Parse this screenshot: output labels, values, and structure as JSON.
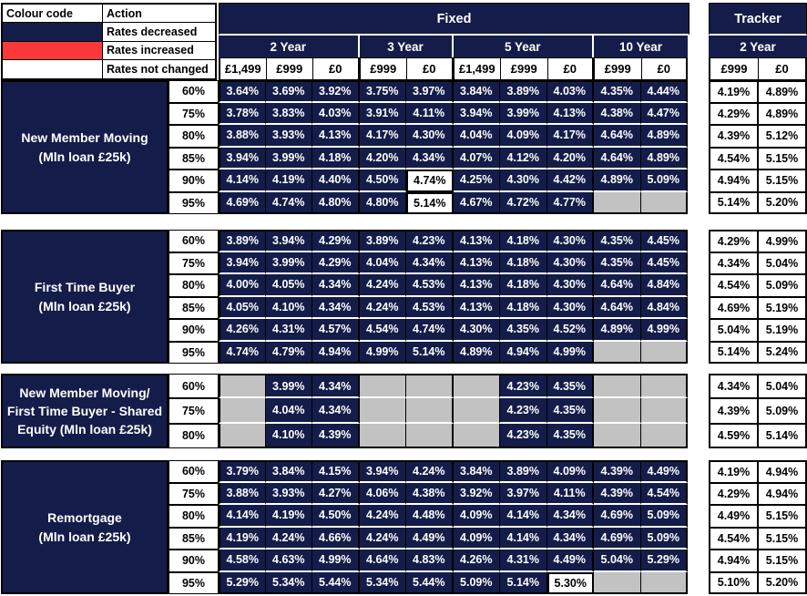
{
  "colors": {
    "navy": "#141d49",
    "red": "#fa3a3a",
    "empty_gray": "#c2c2c2"
  },
  "legend": {
    "col1_header": "Colour code",
    "col2_header": "Action",
    "rows": [
      {
        "color": "navy",
        "action": "Rates decreased"
      },
      {
        "color": "red",
        "action": "Rates increased"
      },
      {
        "color": "white",
        "action": "Rates not changed"
      }
    ]
  },
  "header": {
    "fixed_label": "Fixed",
    "tracker_label": "Tracker",
    "fixed_groups": [
      {
        "label": "2 Year",
        "fees": [
          "£1,499",
          "£999",
          "£0"
        ]
      },
      {
        "label": "3 Year",
        "fees": [
          "£999",
          "£0"
        ]
      },
      {
        "label": "5 Year",
        "fees": [
          "£1,499",
          "£999",
          "£0"
        ]
      },
      {
        "label": "10 Year",
        "fees": [
          "£999",
          "£0"
        ]
      }
    ],
    "tracker_group": {
      "label": "2 Year",
      "fees": [
        "£999",
        "£0"
      ]
    }
  },
  "sections": [
    {
      "id": "new-member-moving",
      "label_lines": [
        "New Member Moving",
        "(Mln loan £25k)"
      ],
      "rows": [
        {
          "ltv": "60%",
          "fixed": [
            "3.64%",
            "3.69%",
            "3.92%",
            "3.75%",
            "3.97%",
            "3.84%",
            "3.89%",
            "4.03%",
            "4.35%",
            "4.44%"
          ],
          "tracker": [
            "4.19%",
            "4.89%"
          ],
          "unchanged": []
        },
        {
          "ltv": "75%",
          "fixed": [
            "3.78%",
            "3.83%",
            "4.03%",
            "3.91%",
            "4.11%",
            "3.94%",
            "3.99%",
            "4.13%",
            "4.38%",
            "4.47%"
          ],
          "tracker": [
            "4.29%",
            "4.89%"
          ],
          "unchanged": []
        },
        {
          "ltv": "80%",
          "fixed": [
            "3.88%",
            "3.93%",
            "4.13%",
            "4.17%",
            "4.30%",
            "4.04%",
            "4.09%",
            "4.17%",
            "4.64%",
            "4.89%"
          ],
          "tracker": [
            "4.39%",
            "5.12%"
          ],
          "unchanged": []
        },
        {
          "ltv": "85%",
          "fixed": [
            "3.94%",
            "3.99%",
            "4.18%",
            "4.20%",
            "4.34%",
            "4.07%",
            "4.12%",
            "4.20%",
            "4.64%",
            "4.89%"
          ],
          "tracker": [
            "4.54%",
            "5.15%"
          ],
          "unchanged": []
        },
        {
          "ltv": "90%",
          "fixed": [
            "4.14%",
            "4.19%",
            "4.40%",
            "4.50%",
            "4.74%",
            "4.25%",
            "4.30%",
            "4.42%",
            "4.89%",
            "5.09%"
          ],
          "tracker": [
            "4.94%",
            "5.15%"
          ],
          "unchanged": [
            4
          ]
        },
        {
          "ltv": "95%",
          "fixed": [
            "4.69%",
            "4.74%",
            "4.80%",
            "4.80%",
            "5.14%",
            "4.67%",
            "4.72%",
            "4.77%",
            "",
            ""
          ],
          "tracker": [
            "5.14%",
            "5.20%"
          ],
          "unchanged": [
            4
          ]
        }
      ]
    },
    {
      "id": "first-time-buyer",
      "label_lines": [
        "First Time Buyer",
        "(Mln loan £25k)"
      ],
      "rows": [
        {
          "ltv": "60%",
          "fixed": [
            "3.89%",
            "3.94%",
            "4.29%",
            "3.89%",
            "4.23%",
            "4.13%",
            "4.18%",
            "4.30%",
            "4.35%",
            "4.45%"
          ],
          "tracker": [
            "4.29%",
            "4.99%"
          ],
          "unchanged": []
        },
        {
          "ltv": "75%",
          "fixed": [
            "3.94%",
            "3.99%",
            "4.29%",
            "4.04%",
            "4.34%",
            "4.13%",
            "4.18%",
            "4.30%",
            "4.35%",
            "4.45%"
          ],
          "tracker": [
            "4.34%",
            "5.04%"
          ],
          "unchanged": []
        },
        {
          "ltv": "80%",
          "fixed": [
            "4.00%",
            "4.05%",
            "4.34%",
            "4.24%",
            "4.53%",
            "4.13%",
            "4.18%",
            "4.30%",
            "4.64%",
            "4.84%"
          ],
          "tracker": [
            "4.54%",
            "5.09%"
          ],
          "unchanged": []
        },
        {
          "ltv": "85%",
          "fixed": [
            "4.05%",
            "4.10%",
            "4.34%",
            "4.24%",
            "4.53%",
            "4.13%",
            "4.18%",
            "4.30%",
            "4.64%",
            "4.84%"
          ],
          "tracker": [
            "4.69%",
            "5.19%"
          ],
          "unchanged": []
        },
        {
          "ltv": "90%",
          "fixed": [
            "4.26%",
            "4.31%",
            "4.57%",
            "4.54%",
            "4.74%",
            "4.30%",
            "4.35%",
            "4.52%",
            "4.89%",
            "4.99%"
          ],
          "tracker": [
            "5.04%",
            "5.19%"
          ],
          "unchanged": []
        },
        {
          "ltv": "95%",
          "fixed": [
            "4.74%",
            "4.79%",
            "4.94%",
            "4.99%",
            "5.14%",
            "4.89%",
            "4.94%",
            "4.99%",
            "",
            ""
          ],
          "tracker": [
            "5.14%",
            "5.24%"
          ],
          "unchanged": []
        }
      ]
    },
    {
      "id": "shared-equity",
      "label_lines": [
        "New Member Moving/",
        "First Time Buyer - Shared",
        "Equity (Mln loan £25k)"
      ],
      "rows": [
        {
          "ltv": "60%",
          "fixed": [
            "",
            "3.99%",
            "4.34%",
            "",
            "",
            "",
            "4.23%",
            "4.35%",
            "",
            ""
          ],
          "tracker": [
            "4.34%",
            "5.04%"
          ],
          "unchanged": []
        },
        {
          "ltv": "75%",
          "fixed": [
            "",
            "4.04%",
            "4.34%",
            "",
            "",
            "",
            "4.23%",
            "4.35%",
            "",
            ""
          ],
          "tracker": [
            "4.39%",
            "5.09%"
          ],
          "unchanged": []
        },
        {
          "ltv": "80%",
          "fixed": [
            "",
            "4.10%",
            "4.39%",
            "",
            "",
            "",
            "4.23%",
            "4.35%",
            "",
            ""
          ],
          "tracker": [
            "4.59%",
            "5.14%"
          ],
          "unchanged": []
        }
      ]
    },
    {
      "id": "remortgage",
      "label_lines": [
        "Remortgage",
        "(Mln loan £25k)"
      ],
      "rows": [
        {
          "ltv": "60%",
          "fixed": [
            "3.79%",
            "3.84%",
            "4.15%",
            "3.94%",
            "4.24%",
            "3.84%",
            "3.89%",
            "4.09%",
            "4.39%",
            "4.49%"
          ],
          "tracker": [
            "4.19%",
            "4.94%"
          ],
          "unchanged": []
        },
        {
          "ltv": "75%",
          "fixed": [
            "3.88%",
            "3.93%",
            "4.27%",
            "4.06%",
            "4.38%",
            "3.92%",
            "3.97%",
            "4.11%",
            "4.39%",
            "4.54%"
          ],
          "tracker": [
            "4.29%",
            "4.94%"
          ],
          "unchanged": []
        },
        {
          "ltv": "80%",
          "fixed": [
            "4.14%",
            "4.19%",
            "4.50%",
            "4.24%",
            "4.48%",
            "4.09%",
            "4.14%",
            "4.34%",
            "4.69%",
            "5.09%"
          ],
          "tracker": [
            "4.49%",
            "5.15%"
          ],
          "unchanged": []
        },
        {
          "ltv": "85%",
          "fixed": [
            "4.19%",
            "4.24%",
            "4.66%",
            "4.24%",
            "4.49%",
            "4.09%",
            "4.14%",
            "4.34%",
            "4.69%",
            "5.09%"
          ],
          "tracker": [
            "4.54%",
            "5.15%"
          ],
          "unchanged": []
        },
        {
          "ltv": "90%",
          "fixed": [
            "4.58%",
            "4.63%",
            "4.99%",
            "4.64%",
            "4.83%",
            "4.26%",
            "4.31%",
            "4.49%",
            "5.04%",
            "5.29%"
          ],
          "tracker": [
            "4.94%",
            "5.15%"
          ],
          "unchanged": []
        },
        {
          "ltv": "95%",
          "fixed": [
            "5.29%",
            "5.34%",
            "5.44%",
            "5.34%",
            "5.44%",
            "5.09%",
            "5.14%",
            "5.30%",
            "",
            ""
          ],
          "tracker": [
            "5.10%",
            "5.20%"
          ],
          "unchanged": [
            7
          ]
        }
      ]
    }
  ]
}
